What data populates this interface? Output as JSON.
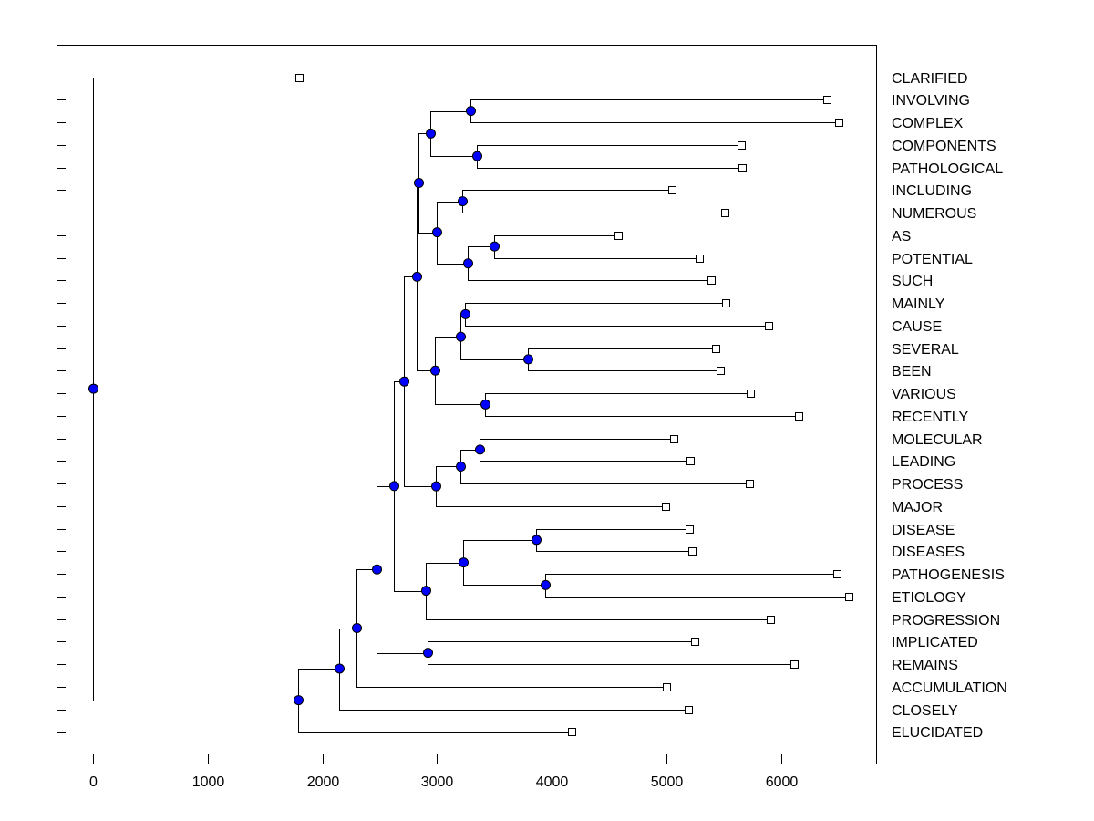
{
  "colors": {
    "node": "#0000ff",
    "leaf": "#ffffff",
    "line": "#000000"
  },
  "chart_data": {
    "type": "dendrogram",
    "title": "",
    "xlabel": "",
    "ylabel": "",
    "xlim": [
      -320,
      6950
    ],
    "xticks": [
      0,
      1000,
      2000,
      3000,
      4000,
      5000,
      6000
    ],
    "xtick_labels": [
      "0",
      "1000",
      "2000",
      "3000",
      "4000",
      "5000",
      "6000"
    ],
    "leaves": [
      {
        "label": "CLARIFIED",
        "x": 1800
      },
      {
        "label": "INVOLVING",
        "x": 6400
      },
      {
        "label": "COMPLEX",
        "x": 6500
      },
      {
        "label": "COMPONENTS",
        "x": 5650
      },
      {
        "label": "PATHOLOGICAL",
        "x": 5660
      },
      {
        "label": "INCLUDING",
        "x": 5050
      },
      {
        "label": "NUMEROUS",
        "x": 5510
      },
      {
        "label": "AS",
        "x": 4580
      },
      {
        "label": "POTENTIAL",
        "x": 5290
      },
      {
        "label": "SUCH",
        "x": 5390
      },
      {
        "label": "MAINLY",
        "x": 5520
      },
      {
        "label": "CAUSE",
        "x": 5890
      },
      {
        "label": "SEVERAL",
        "x": 5430
      },
      {
        "label": "BEEN",
        "x": 5470
      },
      {
        "label": "VARIOUS",
        "x": 5730
      },
      {
        "label": "RECENTLY",
        "x": 6150
      },
      {
        "label": "MOLECULAR",
        "x": 5060
      },
      {
        "label": "LEADING",
        "x": 5210
      },
      {
        "label": "PROCESS",
        "x": 5720
      },
      {
        "label": "MAJOR",
        "x": 4990
      },
      {
        "label": "DISEASE",
        "x": 5200
      },
      {
        "label": "DISEASES",
        "x": 5220
      },
      {
        "label": "PATHOGENESIS",
        "x": 6490
      },
      {
        "label": "ETIOLOGY",
        "x": 6590
      },
      {
        "label": "PROGRESSION",
        "x": 5910
      },
      {
        "label": "IMPLICATED",
        "x": 5250
      },
      {
        "label": "REMAINS",
        "x": 6110
      },
      {
        "label": "ACCUMULATION",
        "x": 5000
      },
      {
        "label": "CLOSELY",
        "x": 5190
      },
      {
        "label": "ELUCIDATED",
        "x": 4170
      }
    ],
    "merges": [
      {
        "id": "n_root",
        "x": 0,
        "children": [
          "L0",
          "n_a"
        ]
      },
      {
        "id": "n_a",
        "x": 1790,
        "children": [
          "n_b",
          "L29"
        ]
      },
      {
        "id": "n_b",
        "x": 2150,
        "children": [
          "n_c",
          "L28"
        ]
      },
      {
        "id": "n_c",
        "x": 2300,
        "children": [
          "n_d",
          "L27"
        ]
      },
      {
        "id": "n_d",
        "x": 2470,
        "children": [
          "n_e",
          "n_impl"
        ]
      },
      {
        "id": "n_impl",
        "x": 2920,
        "children": [
          "L25",
          "L26"
        ]
      },
      {
        "id": "n_e",
        "x": 2620,
        "children": [
          "n_f",
          "n_g"
        ]
      },
      {
        "id": "n_g",
        "x": 2900,
        "children": [
          "n_dis",
          "L24"
        ]
      },
      {
        "id": "n_dis",
        "x": 3230,
        "children": [
          "n_dd",
          "n_pe"
        ]
      },
      {
        "id": "n_dd",
        "x": 3860,
        "children": [
          "L20",
          "L21"
        ]
      },
      {
        "id": "n_pe",
        "x": 3940,
        "children": [
          "L22",
          "L23"
        ]
      },
      {
        "id": "n_f",
        "x": 2710,
        "children": [
          "n_h",
          "n_mlpm"
        ]
      },
      {
        "id": "n_mlpm",
        "x": 2990,
        "children": [
          "n_mlp",
          "L19"
        ]
      },
      {
        "id": "n_mlp",
        "x": 3200,
        "children": [
          "n_ml",
          "L18"
        ]
      },
      {
        "id": "n_ml",
        "x": 3370,
        "children": [
          "L16",
          "L17"
        ]
      },
      {
        "id": "n_h",
        "x": 2820,
        "children": [
          "n_i",
          "n_j"
        ]
      },
      {
        "id": "n_i",
        "x": 2840,
        "children": [
          "n_k",
          "n_l"
        ]
      },
      {
        "id": "n_k",
        "x": 2940,
        "children": [
          "n_ic",
          "n_cp"
        ]
      },
      {
        "id": "n_ic",
        "x": 3290,
        "children": [
          "L1",
          "L2"
        ]
      },
      {
        "id": "n_cp",
        "x": 3350,
        "children": [
          "L3",
          "L4"
        ]
      },
      {
        "id": "n_l",
        "x": 3000,
        "children": [
          "n_in",
          "n_aps"
        ]
      },
      {
        "id": "n_in",
        "x": 3220,
        "children": [
          "L5",
          "L6"
        ]
      },
      {
        "id": "n_aps",
        "x": 3270,
        "children": [
          "n_ap",
          "L9"
        ]
      },
      {
        "id": "n_ap",
        "x": 3500,
        "children": [
          "L7",
          "L8"
        ]
      },
      {
        "id": "n_j",
        "x": 2980,
        "children": [
          "n_mcsb",
          "n_vr"
        ]
      },
      {
        "id": "n_mcsb",
        "x": 3200,
        "children": [
          "n_mc",
          "n_sb"
        ]
      },
      {
        "id": "n_mc",
        "x": 3240,
        "children": [
          "L10",
          "L11"
        ]
      },
      {
        "id": "n_sb",
        "x": 3790,
        "children": [
          "L12",
          "L13"
        ]
      },
      {
        "id": "n_vr",
        "x": 3420,
        "children": [
          "L14",
          "L15"
        ]
      }
    ]
  }
}
